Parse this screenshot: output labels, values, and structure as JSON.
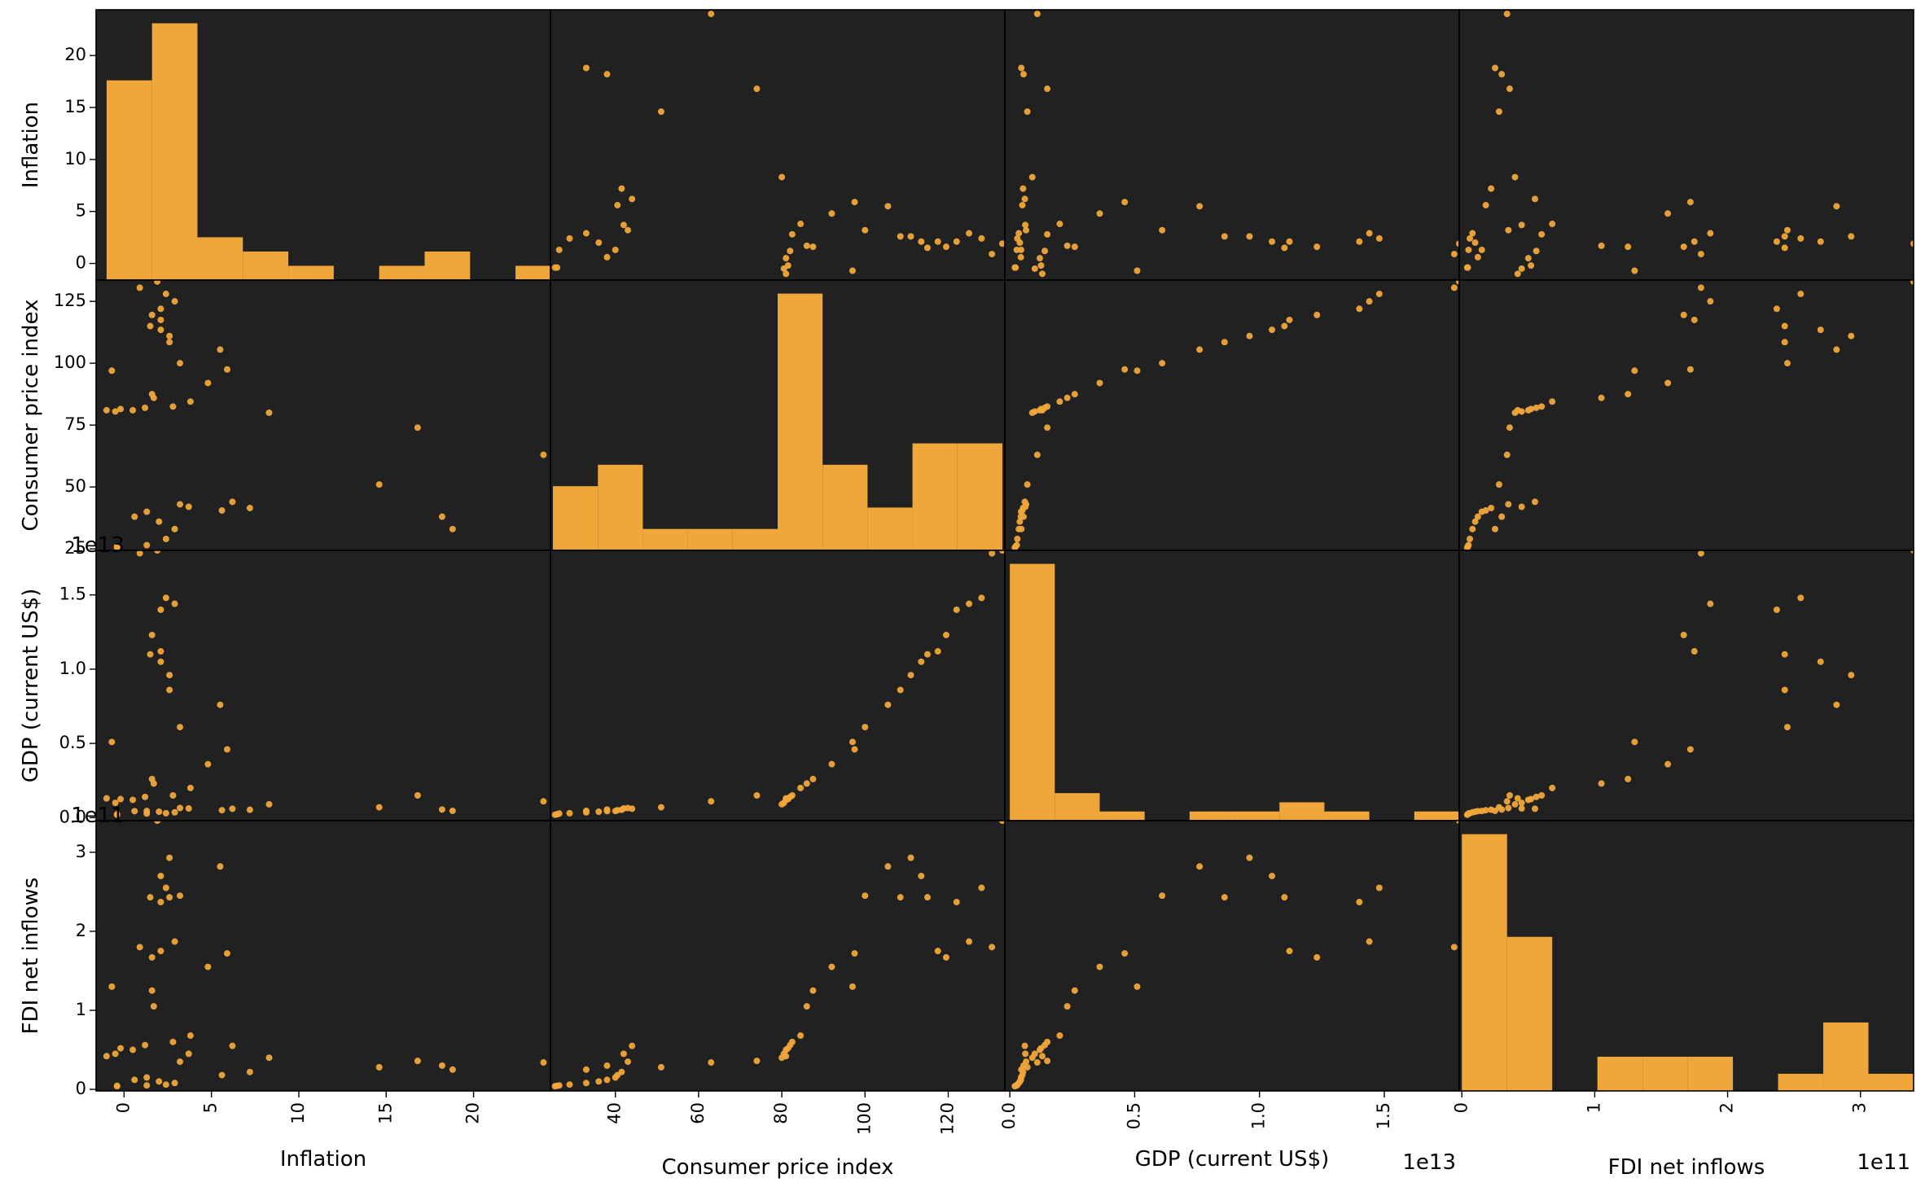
{
  "chart_data": {
    "type": "scatter-matrix",
    "variables": [
      "Inflation",
      "Consumer price index",
      "GDP (current US$)",
      "FDI net inflows"
    ],
    "grid": false,
    "colors": {
      "marks": "#f0a73a",
      "panel_bg": "#212121",
      "border": "#000000"
    },
    "axes": [
      {
        "name": "Inflation",
        "label": "Inflation",
        "lim": [
          -1.6,
          24.4
        ],
        "ticks": [
          0,
          5,
          10,
          15,
          20
        ],
        "tick_labels": [
          "0",
          "5",
          "10",
          "15",
          "20"
        ],
        "offset_text": ""
      },
      {
        "name": "Consumer price index",
        "label": "Consumer price index",
        "lim": [
          24.4,
          133.6
        ],
        "ticks": [
          40,
          60,
          80,
          100,
          120
        ],
        "tick_labels": [
          "40",
          "60",
          "80",
          "100",
          "120"
        ],
        "y_ticks": [
          25,
          50,
          75,
          100,
          125
        ],
        "y_tick_labels": [
          "25",
          "50",
          "75",
          "100",
          "125"
        ],
        "offset_text": ""
      },
      {
        "name": "GDP (current US$)",
        "label": "GDP (current US$)",
        "lim": [
          -200000000000.0,
          18000000000000.0
        ],
        "ticks": [
          0,
          5000000000000.0,
          10000000000000.0,
          15000000000000.0
        ],
        "tick_labels": [
          "0.0",
          "0.5",
          "1.0",
          "1.5"
        ],
        "offset_text": "1e13"
      },
      {
        "name": "FDI net inflows",
        "label": "FDI net inflows",
        "lim": [
          -2000000000.0,
          340000000000.0
        ],
        "ticks": [
          0,
          100000000000.0,
          200000000000.0,
          300000000000.0
        ],
        "tick_labels": [
          "0",
          "1",
          "2",
          "3"
        ],
        "offset_text": "1e11"
      }
    ],
    "histograms": [
      {
        "variable": "Inflation",
        "bin_edges": [
          -1.0,
          1.6,
          4.2,
          6.8,
          9.4,
          12.0,
          14.6,
          17.2,
          19.8,
          22.4,
          25.0
        ],
        "counts": [
          14,
          18,
          3,
          2,
          1,
          0,
          1,
          2,
          0,
          1
        ]
      },
      {
        "variable": "Consumer price index",
        "bin_edges": [
          25,
          35.8,
          46.6,
          57.4,
          68.2,
          79.0,
          89.8,
          100.6,
          111.4,
          122.2,
          133.0
        ],
        "counts": [
          3,
          4,
          1,
          1,
          1,
          12,
          4,
          2,
          5,
          5
        ]
      },
      {
        "variable": "GDP (current US$)",
        "bin_edges": [
          0,
          1800000000000.0,
          3600000000000.0,
          5400000000000.0,
          7200000000000.0,
          9000000000000.0,
          10800000000000.0,
          12600000000000.0,
          14400000000000.0,
          16200000000000.0,
          18000000000000.0
        ],
        "counts": [
          28,
          3,
          1,
          0,
          1,
          1,
          2,
          1,
          0,
          1
        ]
      },
      {
        "variable": "FDI net inflows",
        "bin_edges": [
          0,
          34000000000.0,
          68000000000.0,
          102000000000.0,
          136000000000.0,
          170000000000.0,
          204000000000.0,
          238000000000.0,
          272000000000.0,
          306000000000.0,
          340000000000.0
        ],
        "counts": [
          15,
          9,
          0,
          2,
          2,
          2,
          0,
          1,
          4,
          1
        ]
      }
    ],
    "points": [
      [
        -0.4,
        25.5,
        200000000000.0,
        4000000000.0
      ],
      [
        -0.4,
        26.0,
        230000000000.0,
        4500000000.0
      ],
      [
        1.3,
        26.5,
        280000000000.0,
        5000000000.0
      ],
      [
        2.4,
        29.0,
        300000000000.0,
        6000000000.0
      ],
      [
        2.9,
        33.0,
        360000000000.0,
        8000000000.0
      ],
      [
        2.0,
        36.0,
        400000000000.0,
        10000000000.0
      ],
      [
        0.6,
        38.0,
        440000000000.0,
        12000000000.0
      ],
      [
        1.3,
        40.0,
        450000000000.0,
        15000000000.0
      ],
      [
        5.6,
        40.5,
        500000000000.0,
        18000000000.0
      ],
      [
        7.2,
        41.5,
        530000000000.0,
        22000000000.0
      ],
      [
        18.8,
        33.0,
        460000000000.0,
        25000000000.0
      ],
      [
        18.2,
        38.0,
        550000000000.0,
        30000000000.0
      ],
      [
        3.2,
        43.0,
        650000000000.0,
        35000000000.0
      ],
      [
        3.7,
        42.0,
        620000000000.0,
        45000000000.0
      ],
      [
        14.6,
        51.0,
        700000000000.0,
        28000000000.0
      ],
      [
        6.2,
        44.0,
        600000000000.0,
        55000000000.0
      ],
      [
        24.0,
        63.0,
        1100000000000.0,
        34000000000.0
      ],
      [
        16.8,
        74.0,
        1500000000000.0,
        36000000000.0
      ],
      [
        8.3,
        80.0,
        900000000000.0,
        40000000000.0
      ],
      [
        -0.5,
        80.5,
        1000000000000.0,
        45000000000.0
      ],
      [
        0.5,
        81.0,
        1200000000000.0,
        50000000000.0
      ],
      [
        -0.2,
        81.5,
        1250000000000.0,
        52000000000.0
      ],
      [
        1.2,
        82.0,
        1400000000000.0,
        56000000000.0
      ],
      [
        2.8,
        82.5,
        1500000000000.0,
        60000000000.0
      ],
      [
        -1.0,
        81.0,
        1300000000000.0,
        42000000000.0
      ],
      [
        3.8,
        84.5,
        2000000000000.0,
        68000000000.0
      ],
      [
        1.7,
        86.0,
        2300000000000.0,
        105000000000.0
      ],
      [
        1.6,
        87.5,
        2600000000000.0,
        125000000000.0
      ],
      [
        4.8,
        92.0,
        3600000000000.0,
        155000000000.0
      ],
      [
        5.9,
        97.5,
        4600000000000.0,
        172000000000.0
      ],
      [
        -0.7,
        97.0,
        5100000000000.0,
        130000000000.0
      ],
      [
        3.2,
        100.0,
        6100000000000.0,
        245000000000.0
      ],
      [
        5.5,
        105.5,
        7600000000000.0,
        282000000000.0
      ],
      [
        2.6,
        108.5,
        8600000000000.0,
        243000000000.0
      ],
      [
        2.6,
        111.0,
        9600000000000.0,
        293000000000.0
      ],
      [
        2.1,
        113.5,
        10500000000000.0,
        270000000000.0
      ],
      [
        1.5,
        115.0,
        11000000000000.0,
        243000000000.0
      ],
      [
        2.1,
        117.5,
        11200000000000.0,
        175000000000.0
      ],
      [
        1.6,
        119.5,
        12300000000000.0,
        167000000000.0
      ],
      [
        2.1,
        122.0,
        14000000000000.0,
        237000000000.0
      ],
      [
        2.9,
        125.0,
        14400000000000.0,
        187000000000.0
      ],
      [
        2.4,
        128.0,
        14800000000000.0,
        255000000000.0
      ],
      [
        0.9,
        130.5,
        17800000000000.0,
        180000000000.0
      ],
      [
        1.9,
        133.0,
        18000000000000.0,
        340000000000.0
      ]
    ]
  }
}
